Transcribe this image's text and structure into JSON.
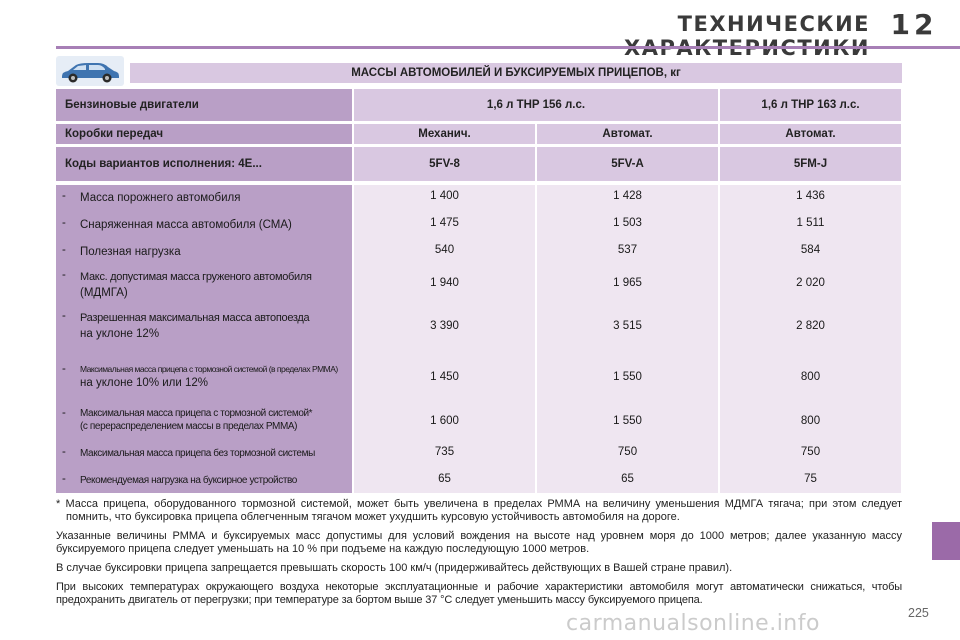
{
  "header": {
    "title": "ТЕХНИЧЕСКИЕ ХАРАКТЕРИСТИКИ",
    "chapter": "12"
  },
  "table": {
    "title": "МАССЫ АВТОМОБИЛЕЙ И БУКСИРУЕМЫХ ПРИЦЕПОВ, кг",
    "engines_label": "Бензиновые двигатели",
    "engine_1": "1,6 л THP 156 л.с.",
    "engine_2": "1,6 л THP 163 л.с.",
    "gearbox_label": "Коробки передач",
    "gearboxes": [
      "Механич.",
      "Автомат.",
      "Автомат."
    ],
    "codes_label": "Коды вариантов исполнения: 4E...",
    "codes": [
      "5FV-8",
      "5FV-A",
      "5FM-J"
    ],
    "rows": [
      {
        "label": "Масса порожнего автомобиля",
        "values": [
          "1 400",
          "1 428",
          "1 436"
        ]
      },
      {
        "label": "Снаряженная масса автомобиля (СМА)",
        "values": [
          "1 475",
          "1 503",
          "1 511"
        ]
      },
      {
        "label": "Полезная нагрузка",
        "values": [
          "540",
          "537",
          "584"
        ]
      },
      {
        "label": "Макс. допустимая масса груженого автомобиля",
        "label2": "(МДМГА)",
        "values": [
          "1 940",
          "1 965",
          "2 020"
        ]
      },
      {
        "label": "Разрешенная максимальная масса автопоезда",
        "label2": "на уклоне 12%",
        "values": [
          "3 390",
          "3 515",
          "2 820"
        ]
      },
      {
        "label": "Максимальная масса прицепа с тормозной системой (в пределах РММА)",
        "label2": "на уклоне 10% или 12%",
        "values": [
          "1 450",
          "1 550",
          "800"
        ]
      },
      {
        "label": "Максимальная масса прицепа с тормозной системой*",
        "label2": "(с перераспределением массы в пределах РММА)",
        "values": [
          "1 600",
          "1 550",
          "800"
        ]
      },
      {
        "label": "Максимальная масса прицепа без тормозной системы",
        "values": [
          "735",
          "750",
          "750"
        ]
      },
      {
        "label": "Рекомендуемая нагрузка на буксирное устройство",
        "values": [
          "65",
          "65",
          "75"
        ]
      }
    ],
    "dash": "-"
  },
  "notes": {
    "star": "* Масса прицепа, оборудованного тормозной системой, может быть увеличена в пределах РММА на величину уменьшения МДМГА тягача; при этом следует помнить, что буксировка прицепа облегченным тягачом может ухудшить курсовую устойчивость автомобиля на дороге.",
    "p1": "Указанные величины РММА и буксируемых масс допустимы для условий вождения на высоте над уровнем моря до 1000 метров; далее указанную массу буксируемого прицепа следует уменьшать на 10 % при подъеме на каждую последующую 1000 метров.",
    "p2": "В случае буксировки прицепа запрещается превышать скорость 100 км/ч (придерживайтесь действующих в Вашей стране правил).",
    "p3": "При высоких температурах окружающего воздуха некоторые эксплуатационные и рабочие характеристики автомобиля могут автоматически снижаться, чтобы предохранить двигатель от перегрузки; при температуре за бортом выше 37 °С следует уменьшить массу буксируемого прицепа."
  },
  "page_number": "225",
  "watermark": "carmanualsonline.info",
  "colors": {
    "accent": "#9b6aa8",
    "rule": "#a77fb6",
    "dark": "#b99fc6",
    "mid": "#d9c8e1",
    "light": "#efe6f1",
    "car": "#3f74b0"
  }
}
